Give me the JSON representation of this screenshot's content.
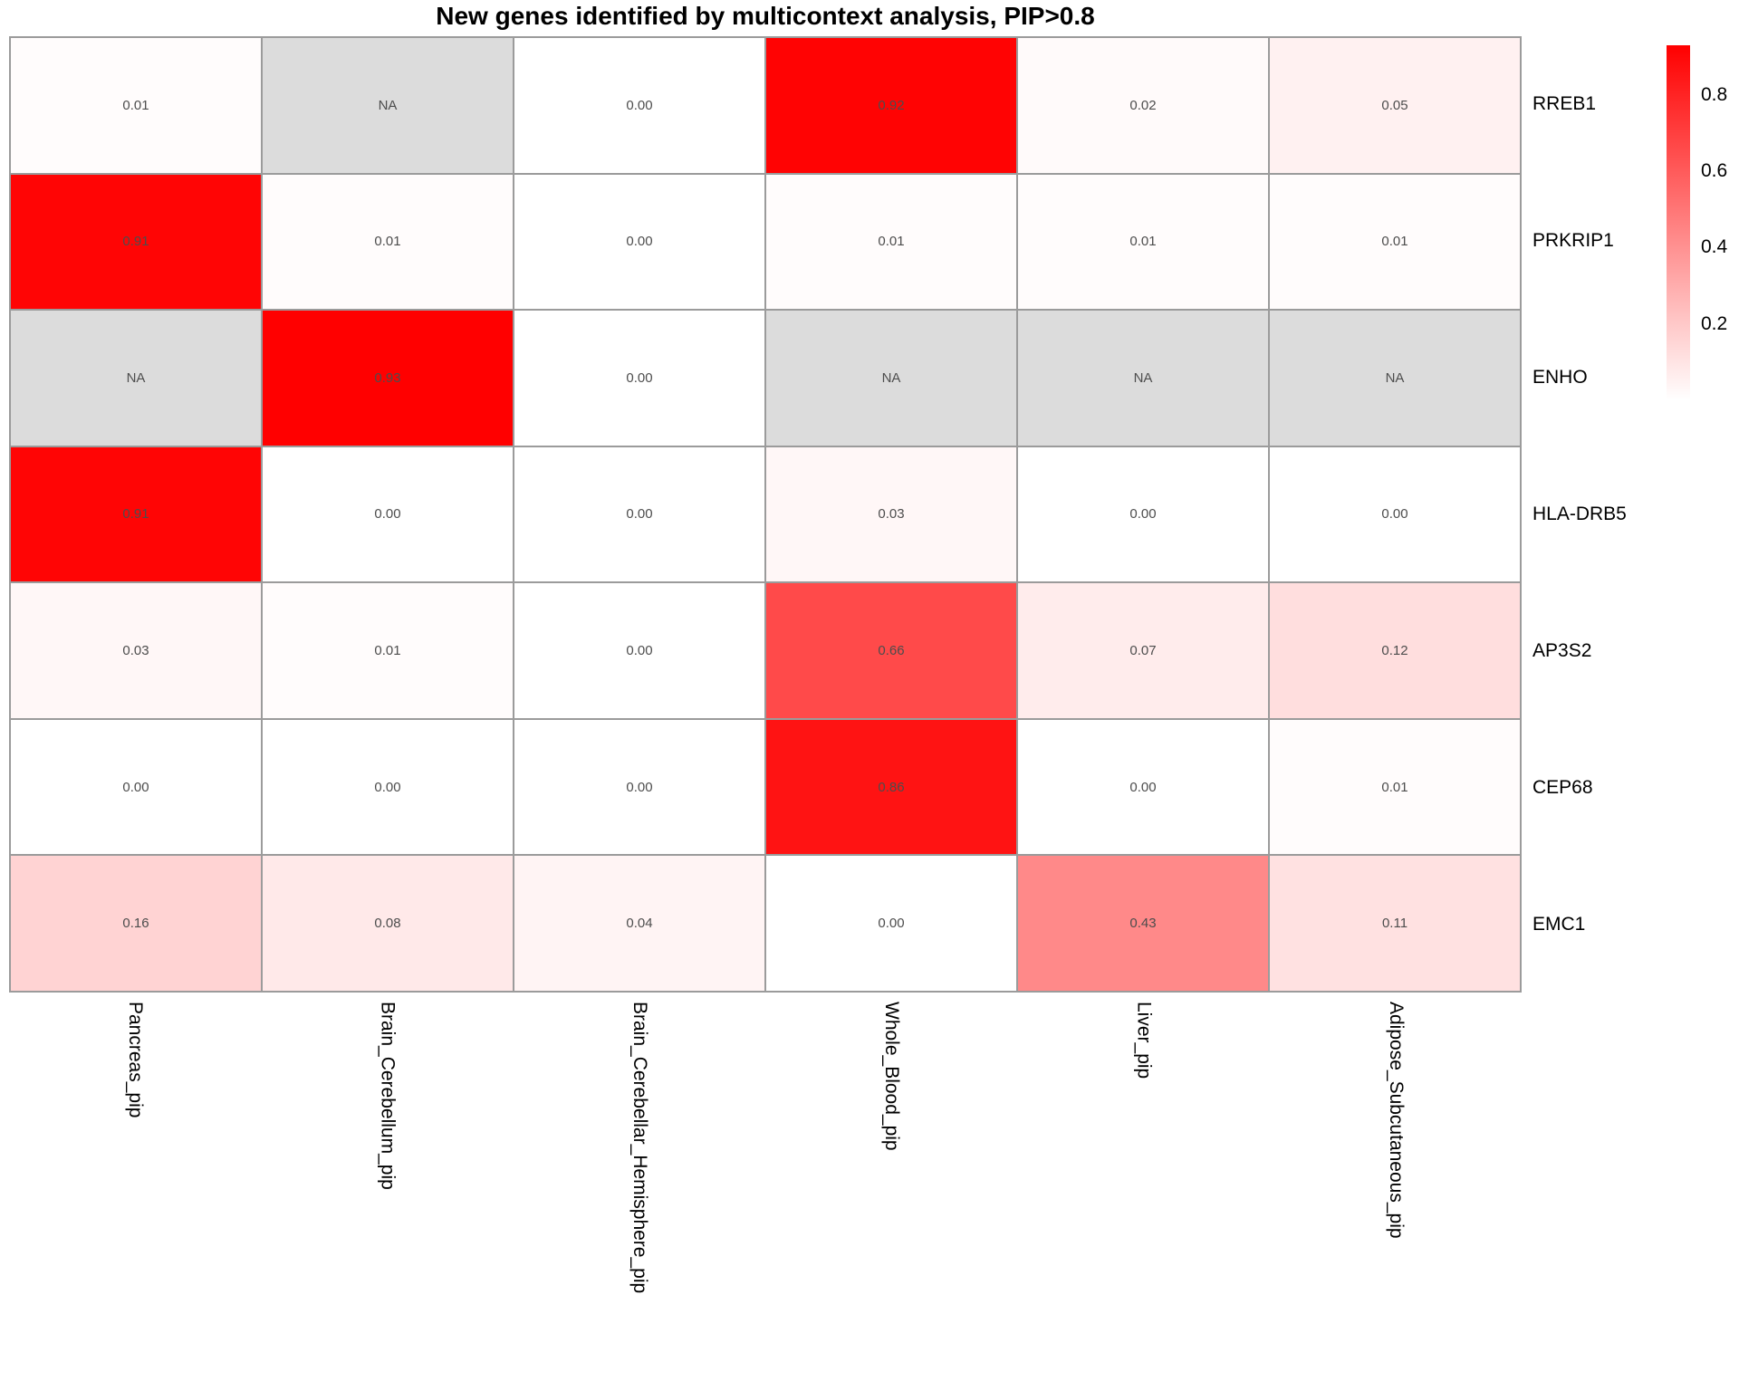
{
  "title": "New genes identified by multicontext analysis, PIP>0.8",
  "chart_data": {
    "type": "heatmap",
    "rows": [
      "RREB1",
      "PRKRIP1",
      "ENHO",
      "HLA-DRB5",
      "AP3S2",
      "CEP68",
      "EMC1"
    ],
    "columns": [
      "Pancreas_pip",
      "Brain_Cerebellum_pip",
      "Brain_Cerebellar_Hemisphere_pip",
      "Whole_Blood_pip",
      "Liver_pip",
      "Adipose_Subcutaneous_pip"
    ],
    "values": [
      [
        0.01,
        null,
        0.0,
        0.92,
        0.02,
        0.05
      ],
      [
        0.91,
        0.01,
        0.0,
        0.01,
        0.01,
        0.01
      ],
      [
        null,
        0.93,
        0.0,
        null,
        null,
        null
      ],
      [
        0.91,
        0.0,
        0.0,
        0.03,
        0.0,
        0.0
      ],
      [
        0.03,
        0.01,
        0.0,
        0.66,
        0.07,
        0.12
      ],
      [
        0.0,
        0.0,
        0.0,
        0.86,
        0.0,
        0.01
      ],
      [
        0.16,
        0.08,
        0.04,
        0.0,
        0.43,
        0.11
      ]
    ],
    "na_label": "NA",
    "value_decimals": 2,
    "colorscale": {
      "min": 0,
      "max": 0.93,
      "low": "#FFFFFF",
      "high": "#FF0000",
      "na": "#DCDCDC"
    },
    "grid_line_color": "#9B9B9B",
    "value_text_color": "#4D4D4D",
    "legend": {
      "position": "right",
      "ticks": [
        0.8,
        0.6,
        0.4,
        0.2
      ],
      "tick_decimals": 1
    },
    "layout": {
      "grid_on": false,
      "row_labels_side": "right",
      "col_labels_rotation": 90
    }
  }
}
